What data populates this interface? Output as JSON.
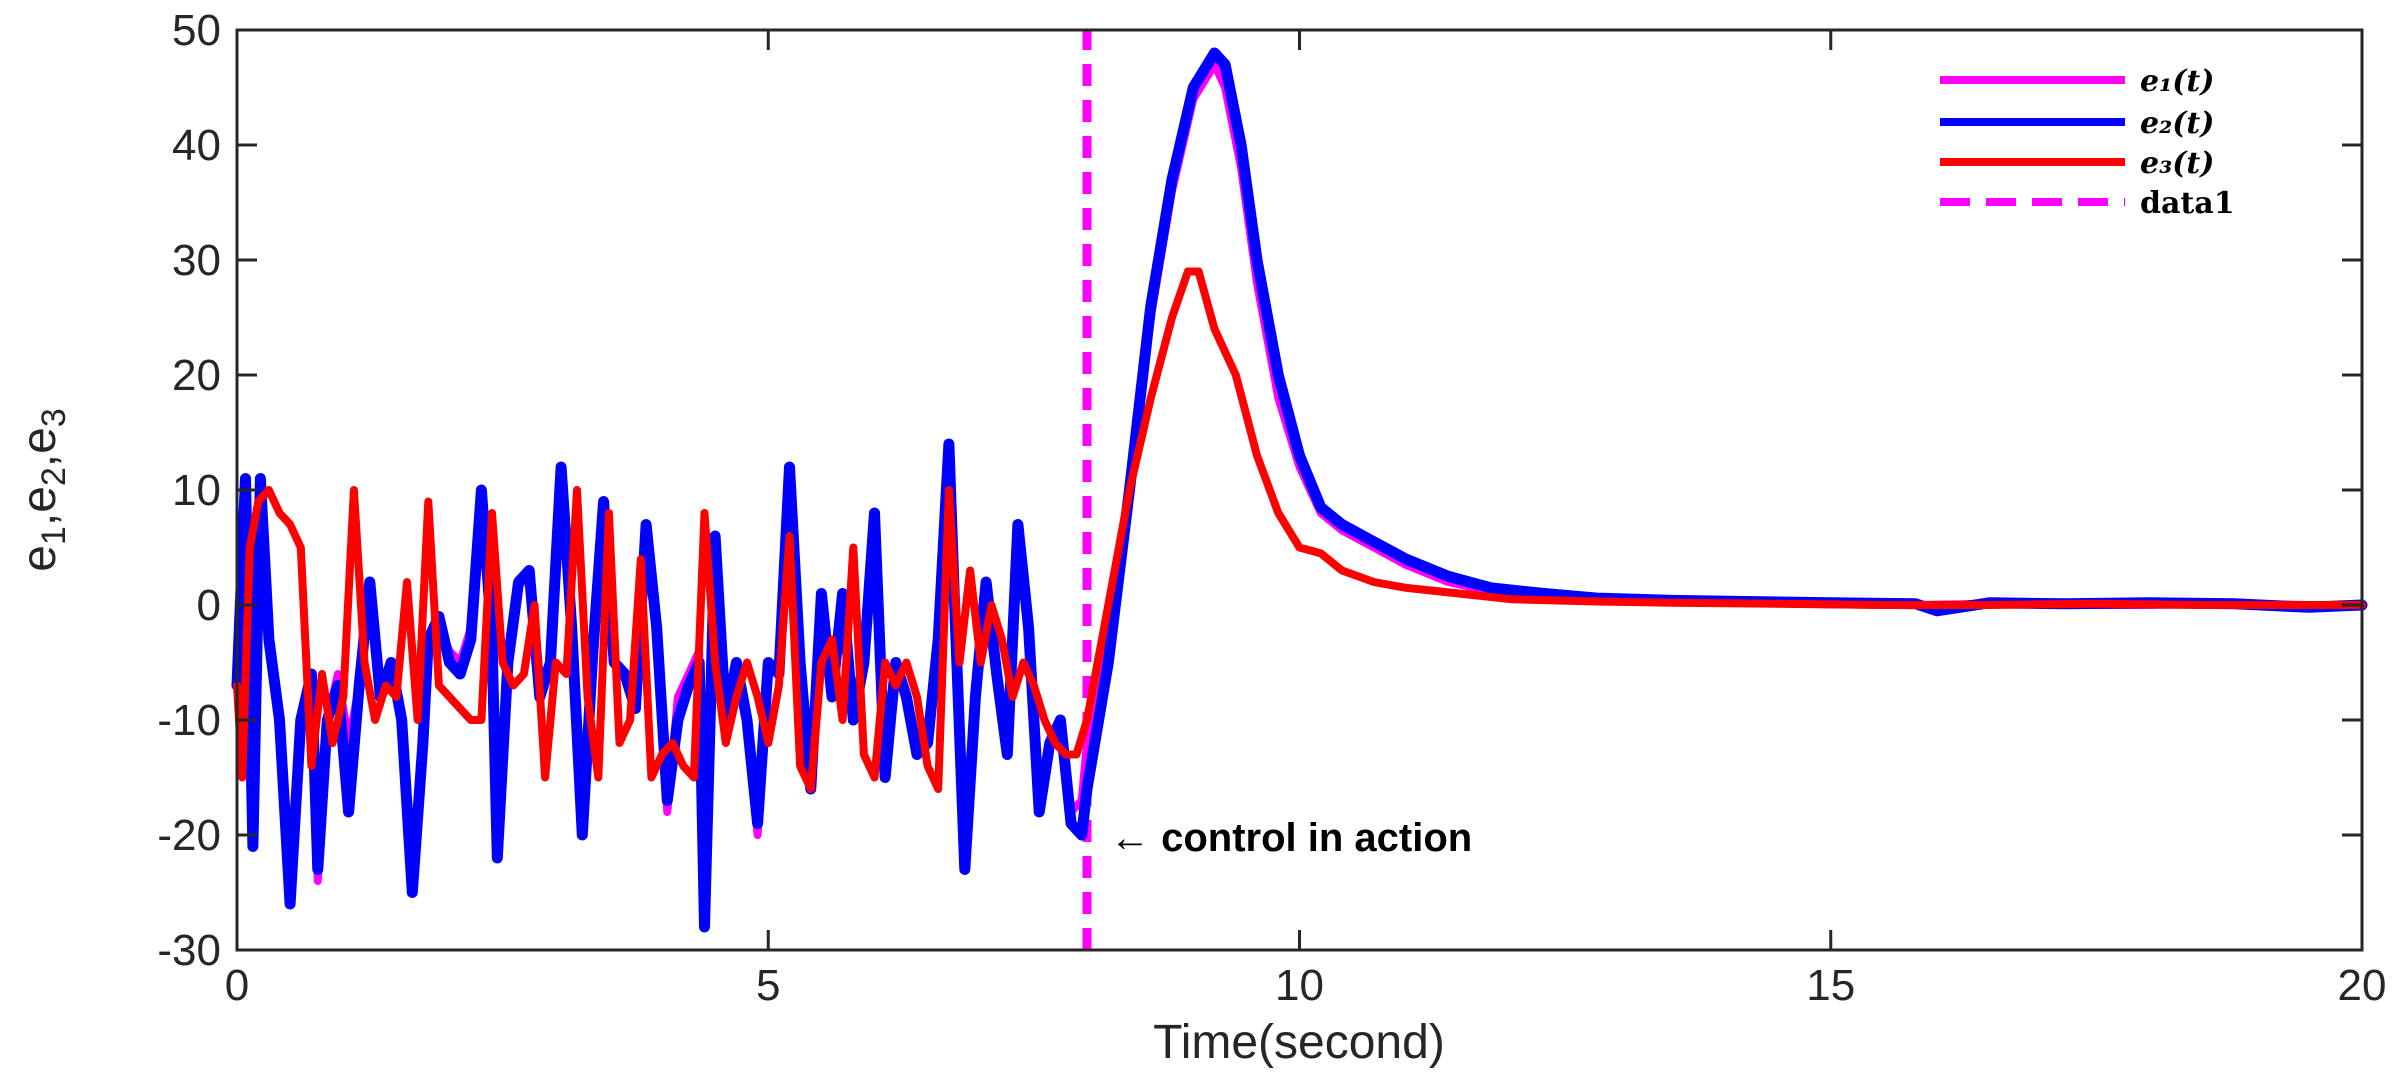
{
  "chart_data": {
    "type": "line",
    "xlabel": "Time(second)",
    "ylabel": "e1,e2,e3",
    "xlim": [
      0,
      20
    ],
    "ylim": [
      -30,
      50
    ],
    "xticks": [
      0,
      5,
      10,
      15,
      20
    ],
    "xtick_labels": [
      "0",
      "5",
      "10",
      "15",
      "20"
    ],
    "yticks": [
      -30,
      -20,
      -10,
      0,
      10,
      20,
      30,
      40,
      50
    ],
    "ytick_labels": [
      "-30",
      "-20",
      "-10",
      "0",
      "10",
      "20",
      "30",
      "40",
      "50"
    ],
    "grid": false,
    "legend_position": "top-right",
    "series": [
      {
        "name": "e1(t)",
        "color": "#ff00ff",
        "x": [
          0,
          0.08,
          0.15,
          0.22,
          0.3,
          0.4,
          0.5,
          0.6,
          0.7,
          0.76,
          0.85,
          0.95,
          1.05,
          1.15,
          1.25,
          1.35,
          1.45,
          1.55,
          1.65,
          1.75,
          1.8,
          1.9,
          2.0,
          2.1,
          2.2,
          2.3,
          2.4,
          2.45,
          2.55,
          2.65,
          2.75,
          2.85,
          2.95,
          3.05,
          3.15,
          3.25,
          3.35,
          3.45,
          3.55,
          3.65,
          3.75,
          3.85,
          3.95,
          4.05,
          4.15,
          4.25,
          4.35,
          4.4,
          4.5,
          4.6,
          4.7,
          4.8,
          4.9,
          5.0,
          5.1,
          5.2,
          5.3,
          5.4,
          5.5,
          5.6,
          5.7,
          5.8,
          5.9,
          6.0,
          6.1,
          6.2,
          6.3,
          6.4,
          6.5,
          6.6,
          6.7,
          6.75,
          6.85,
          6.95,
          7.05,
          7.15,
          7.25,
          7.35,
          7.45,
          7.55,
          7.65,
          7.75,
          7.85,
          7.95,
          8.0,
          8.2,
          8.4,
          8.6,
          8.8,
          9.0,
          9.2,
          9.3,
          9.45,
          9.6,
          9.8,
          10.0,
          10.2,
          10.4,
          10.7,
          11.0,
          11.4,
          11.8,
          12.3,
          12.8,
          13.5,
          14.2,
          15.0,
          15.8,
          16.5,
          17.2,
          18.0,
          18.8,
          19.5,
          20.0
        ],
        "values": [
          -7,
          9,
          -21,
          11,
          -2,
          -10,
          -22,
          -10,
          -6,
          -24,
          -10,
          -6,
          -12,
          -7,
          2,
          -8,
          -5,
          -10,
          -24,
          -12,
          -3,
          -2,
          -4,
          -5,
          -2,
          9,
          -2,
          -20,
          -5,
          2,
          2,
          -8,
          -5,
          11,
          -2,
          -20,
          -4,
          8,
          -5,
          -6,
          -8,
          7,
          -2,
          -18,
          -8,
          -6,
          -4,
          -27,
          5,
          -10,
          -5,
          -10,
          -20,
          -5,
          -6,
          11,
          -5,
          -15,
          1,
          -8,
          1,
          -10,
          -5,
          7,
          -15,
          -5,
          -8,
          -12,
          -12,
          -3,
          13,
          1,
          -20,
          -8,
          2,
          -6,
          -12,
          6,
          -2,
          -18,
          -12,
          -10,
          -18,
          -17,
          -12,
          -3,
          10,
          25,
          36,
          44,
          47,
          45,
          38,
          28,
          18,
          12,
          8,
          6.5,
          5,
          3.5,
          2,
          1.2,
          0.8,
          0.5,
          0.3,
          0.2,
          0.1,
          0,
          0.1,
          0,
          0,
          0.1,
          0,
          0
        ]
      },
      {
        "name": "e2(t)",
        "color": "#0000ff",
        "x": [
          0,
          0.08,
          0.15,
          0.22,
          0.3,
          0.4,
          0.5,
          0.6,
          0.7,
          0.76,
          0.85,
          0.95,
          1.05,
          1.15,
          1.25,
          1.35,
          1.45,
          1.55,
          1.65,
          1.75,
          1.8,
          1.9,
          2.0,
          2.1,
          2.2,
          2.3,
          2.4,
          2.45,
          2.55,
          2.65,
          2.75,
          2.85,
          2.95,
          3.05,
          3.15,
          3.25,
          3.35,
          3.45,
          3.55,
          3.65,
          3.75,
          3.85,
          3.95,
          4.05,
          4.15,
          4.25,
          4.35,
          4.4,
          4.5,
          4.6,
          4.7,
          4.8,
          4.9,
          5.0,
          5.1,
          5.2,
          5.3,
          5.4,
          5.5,
          5.6,
          5.7,
          5.8,
          5.9,
          6.0,
          6.1,
          6.2,
          6.3,
          6.4,
          6.5,
          6.6,
          6.7,
          6.75,
          6.85,
          6.95,
          7.05,
          7.15,
          7.25,
          7.35,
          7.45,
          7.55,
          7.65,
          7.75,
          7.85,
          7.95,
          8.0,
          8.2,
          8.4,
          8.6,
          8.8,
          9.0,
          9.2,
          9.3,
          9.45,
          9.6,
          9.8,
          10.0,
          10.2,
          10.4,
          10.7,
          11.0,
          11.4,
          11.8,
          12.3,
          12.8,
          13.5,
          14.2,
          15.0,
          15.8,
          16.0,
          16.5,
          17.2,
          18.0,
          18.8,
          19.5,
          20.0
        ],
        "values": [
          -7,
          11,
          -21,
          11,
          -3,
          -10,
          -26,
          -10,
          -6,
          -23,
          -10,
          -7,
          -18,
          -7,
          2,
          -8,
          -5,
          -10,
          -25,
          -12,
          -3,
          -1,
          -5,
          -6,
          -3,
          10,
          -3,
          -22,
          -5,
          2,
          3,
          -8,
          -5,
          12,
          -2,
          -20,
          -4,
          9,
          -5,
          -6,
          -9,
          7,
          -2,
          -17,
          -10,
          -7,
          -5,
          -28,
          6,
          -10,
          -5,
          -10,
          -19,
          -5,
          -6,
          12,
          -5,
          -16,
          1,
          -8,
          1,
          -10,
          -5,
          8,
          -15,
          -5,
          -8,
          -13,
          -12,
          -3,
          14,
          1,
          -23,
          -8,
          2,
          -6,
          -13,
          7,
          -2,
          -18,
          -12,
          -10,
          -19,
          -20,
          -16,
          -5,
          10,
          26,
          37,
          45,
          48,
          47,
          40,
          30,
          20,
          13,
          8.5,
          7,
          5.5,
          4,
          2.5,
          1.5,
          1,
          0.6,
          0.4,
          0.3,
          0.2,
          0.1,
          -0.5,
          0.2,
          0.1,
          0.2,
          0.1,
          -0.2,
          0
        ]
      },
      {
        "name": "e3(t)",
        "color": "#ff0000",
        "x": [
          0,
          0.05,
          0.12,
          0.2,
          0.3,
          0.4,
          0.5,
          0.6,
          0.7,
          0.8,
          0.9,
          1.0,
          1.1,
          1.2,
          1.3,
          1.4,
          1.5,
          1.6,
          1.7,
          1.8,
          1.9,
          2.0,
          2.1,
          2.2,
          2.3,
          2.4,
          2.5,
          2.6,
          2.7,
          2.8,
          2.9,
          3.0,
          3.1,
          3.2,
          3.3,
          3.4,
          3.5,
          3.6,
          3.7,
          3.8,
          3.9,
          4.0,
          4.1,
          4.2,
          4.3,
          4.4,
          4.5,
          4.6,
          4.7,
          4.8,
          4.9,
          5.0,
          5.1,
          5.2,
          5.3,
          5.4,
          5.5,
          5.6,
          5.7,
          5.8,
          5.9,
          6.0,
          6.1,
          6.2,
          6.3,
          6.4,
          6.5,
          6.6,
          6.7,
          6.8,
          6.9,
          7.0,
          7.1,
          7.2,
          7.3,
          7.4,
          7.5,
          7.6,
          7.7,
          7.8,
          7.9,
          8.0,
          8.2,
          8.4,
          8.6,
          8.8,
          8.95,
          9.05,
          9.2,
          9.4,
          9.6,
          9.8,
          10.0,
          10.2,
          10.4,
          10.7,
          11.0,
          11.5,
          12.0,
          12.8,
          13.5,
          14.5,
          15.5,
          16.5,
          17.5,
          18.5,
          19.5,
          20.0
        ],
        "values": [
          -7,
          -15,
          5,
          9,
          10,
          8,
          7,
          5,
          -14,
          -6,
          -12,
          -8,
          10,
          -5,
          -10,
          -7,
          -8,
          2,
          -10,
          9,
          -7,
          -8,
          -9,
          -10,
          -10,
          8,
          -5,
          -7,
          -6,
          0,
          -15,
          -5,
          -6,
          10,
          -8,
          -15,
          8,
          -12,
          -10,
          4,
          -15,
          -13,
          -12,
          -14,
          -15,
          8,
          -5,
          -12,
          -8,
          -5,
          -8,
          -12,
          -7,
          6,
          -14,
          -16,
          -5,
          -3,
          -10,
          5,
          -13,
          -15,
          -5,
          -7,
          -5,
          -8,
          -14,
          -16,
          10,
          -5,
          3,
          -5,
          0,
          -3,
          -8,
          -5,
          -7,
          -10,
          -12,
          -13,
          -13,
          -10,
          0,
          10,
          18,
          25,
          29,
          29,
          24,
          20,
          13,
          8,
          5,
          4.5,
          3,
          2,
          1.5,
          1,
          0.5,
          0.3,
          0.2,
          0.1,
          0,
          0,
          0.1,
          0,
          0,
          0
        ]
      },
      {
        "name": "data1",
        "color": "#ff00ff",
        "style": "dashed",
        "x": [
          8,
          8
        ],
        "values": [
          -30,
          50
        ]
      }
    ],
    "annotations": [
      {
        "text": "← control in action",
        "x": 8.3,
        "y": -20
      }
    ]
  },
  "legend": {
    "entries": [
      {
        "label": "e₁(t)",
        "style": "italic"
      },
      {
        "label": "e₂(t)",
        "style": "italic"
      },
      {
        "label": "e₃(t)",
        "style": "italic"
      },
      {
        "label": "data1",
        "style": "plain"
      }
    ]
  },
  "labels": {
    "xlabel": "Time(second)",
    "ylabel_main": "e",
    "ylabel_sub1": "1",
    "ylabel_sep1": ",e",
    "ylabel_sub2": "2",
    "ylabel_sep2": ",e",
    "ylabel_sub3": "3",
    "annotation": "← control in action"
  }
}
